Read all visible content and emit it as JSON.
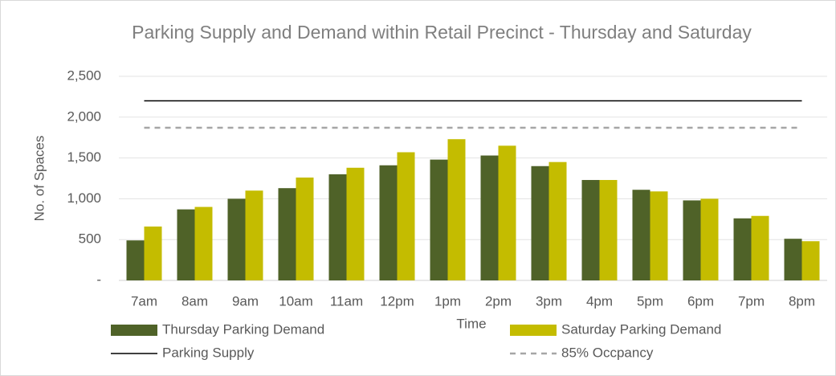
{
  "chart_data": {
    "type": "bar",
    "title": "Parking Supply and Demand within Retail Precinct - Thursday and Saturday",
    "x_label": "Time",
    "y_label": "No. of Spaces",
    "categories": [
      "7am",
      "8am",
      "9am",
      "10am",
      "11am",
      "12pm",
      "1pm",
      "2pm",
      "3pm",
      "4pm",
      "5pm",
      "6pm",
      "7pm",
      "8pm"
    ],
    "series": [
      {
        "name": "Thursday Parking Demand",
        "kind": "bar",
        "color": "#4f6228",
        "values": [
          490,
          870,
          1000,
          1130,
          1300,
          1410,
          1480,
          1530,
          1400,
          1230,
          1110,
          980,
          760,
          510
        ]
      },
      {
        "name": "Saturday Parking Demand",
        "kind": "bar",
        "color": "#c4bc00",
        "values": [
          660,
          900,
          1100,
          1260,
          1380,
          1570,
          1730,
          1650,
          1450,
          1230,
          1090,
          1000,
          790,
          480
        ]
      },
      {
        "name": "Parking Supply",
        "kind": "line",
        "color": "#000000",
        "dashed": false,
        "values": [
          2200,
          2200,
          2200,
          2200,
          2200,
          2200,
          2200,
          2200,
          2200,
          2200,
          2200,
          2200,
          2200,
          2200
        ]
      },
      {
        "name": "85% Occpancy",
        "kind": "line",
        "color": "#a6a6a6",
        "dashed": true,
        "values": [
          1870,
          1870,
          1870,
          1870,
          1870,
          1870,
          1870,
          1870,
          1870,
          1870,
          1870,
          1870,
          1870,
          1870
        ]
      }
    ],
    "ylim": [
      0,
      2500
    ],
    "yticks": [
      {
        "value": 0,
        "label": "-"
      },
      500,
      {
        "value": 1000,
        "label": "1,000"
      },
      {
        "value": 1500,
        "label": "1,500"
      },
      {
        "value": 2000,
        "label": "2,000"
      },
      {
        "value": 2500,
        "label": "2,500"
      }
    ],
    "grid": true
  }
}
